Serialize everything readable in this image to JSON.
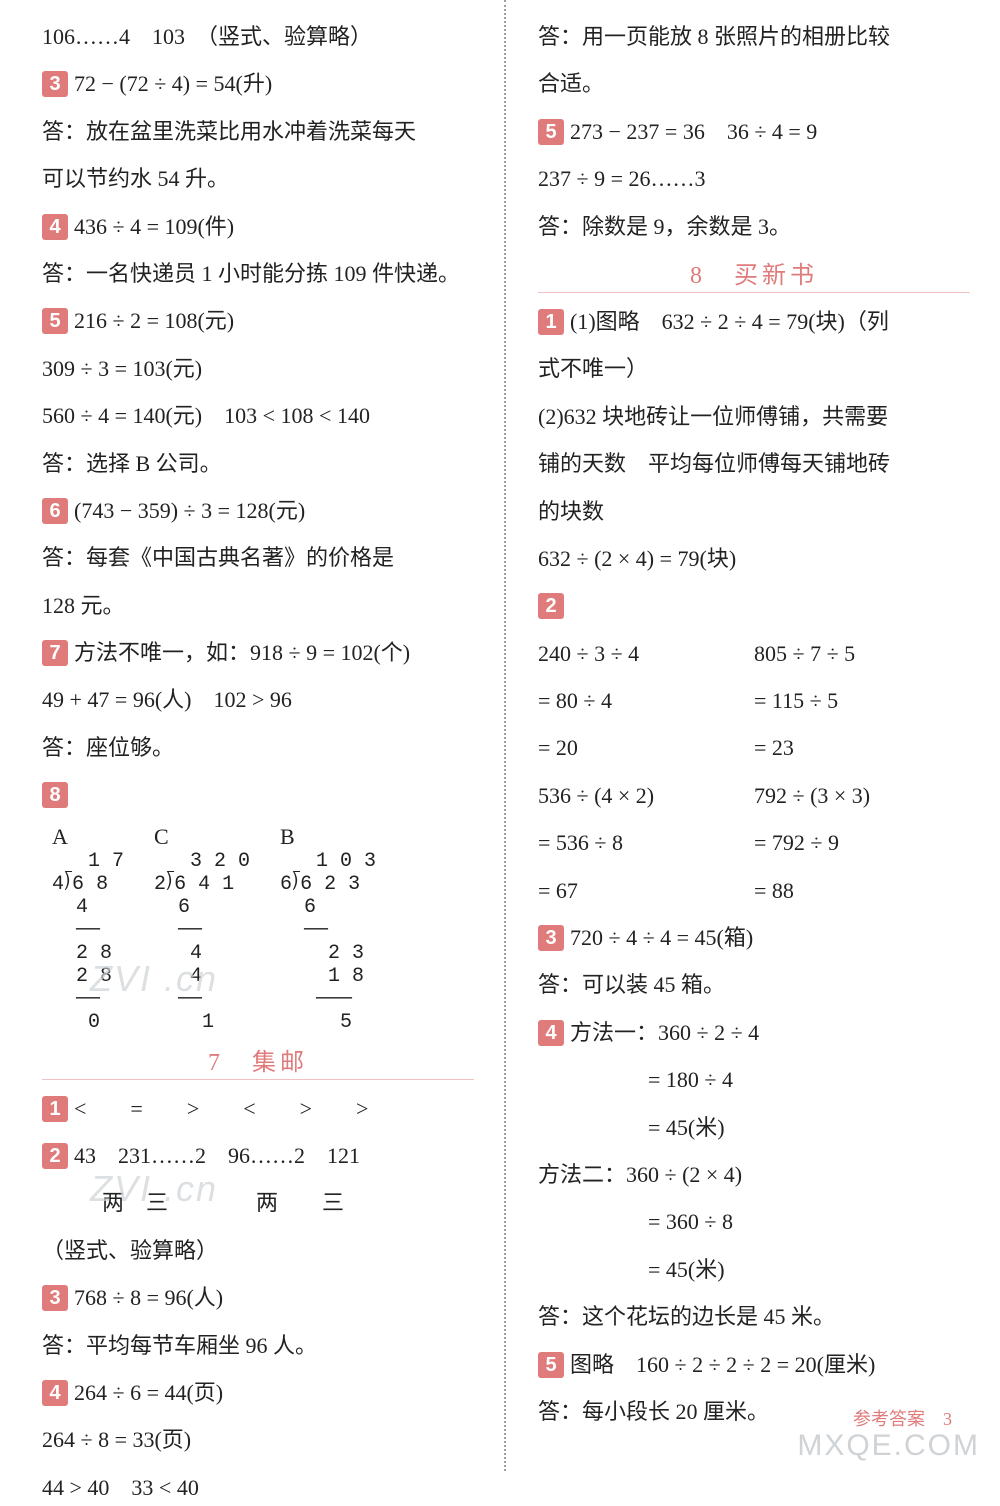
{
  "left": {
    "l1": "106……4　103　（竖式、验算略）",
    "b3": "3",
    "l3": "72 − (72 ÷ 4) = 54(升)",
    "l4": "答：放在盆里洗菜比用水冲着洗菜每天",
    "l5": "可以节约水 54 升。",
    "b4": "4",
    "l6": "436 ÷ 4 = 109(件)",
    "l7": "答：一名快递员 1 小时能分拣 109 件快递。",
    "b5": "5",
    "l8": "216 ÷ 2 = 108(元)",
    "l9": "309 ÷ 3 = 103(元)",
    "l10": "560 ÷ 4 = 140(元)　103 < 108 < 140",
    "l11": "答：选择 B 公司。",
    "b6": "6",
    "l12": "(743 − 359) ÷ 3 = 128(元)",
    "l13": "答：每套《中国古典名著》的价格是",
    "l14": "128 元。",
    "b7": "7",
    "l15": "方法不唯一，如：918 ÷ 9 = 102(个)",
    "l16": "49 + 47 = 96(人)　102 > 96",
    "l17": "答：座位够。",
    "b8": "8",
    "ldA_label": "A",
    "ldA": "   1 7\n4⟌6 8\n  4\n  ──\n  2 8\n  2 8\n  ──\n   0",
    "ldC_label": "C",
    "ldC": "   3 2 0\n2⟌6 4 1\n  6\n  ──\n   4\n   4\n  ──\n    1",
    "ldB_label": "B",
    "ldB": "   1 0 3\n6⟌6 2 3\n  6\n  ──\n    2 3\n    1 8\n   ───\n     5",
    "sec7": "7　集邮",
    "b1": "1",
    "l18": "<　　=　　>　　<　　>　　>",
    "b2": "2",
    "l19a": "43　231……2　96……2　121",
    "l19b": "两　三　　　　两　　三",
    "l19c": "（竖式、验算略）",
    "bb3": "3",
    "l20": "768 ÷ 8 = 96(人)",
    "l21": "答：平均每节车厢坐 96 人。",
    "bb4": "4",
    "l22": "264 ÷ 6 = 44(页)",
    "l23": "264 ÷ 8 = 33(页)",
    "l24": "44 > 40　33 < 40"
  },
  "right": {
    "l1": "答：用一页能放 8 张照片的相册比较",
    "l2": "合适。",
    "b5": "5",
    "l3": "273 − 237 = 36　36 ÷ 4 = 9",
    "l4": "237 ÷ 9 = 26……3",
    "l5": "答：除数是 9，余数是 3。",
    "sec8": "8　买新书",
    "b1": "1",
    "l6": "(1)图略　632 ÷ 2 ÷ 4 = 79(块)（列",
    "l7": "式不唯一）",
    "l8": "(2)632 块地砖让一位师傅铺，共需要",
    "l9": "铺的天数　平均每位师傅每天铺地砖",
    "l10": "的块数",
    "l11": "632 ÷ (2 × 4) = 79(块)",
    "b2": "2",
    "c2a1": "240 ÷ 3 ÷ 4",
    "c2b1": "805 ÷ 7 ÷ 5",
    "c2a2": "= 80 ÷ 4",
    "c2b2": "= 115 ÷ 5",
    "c2a3": "= 20",
    "c2b3": "= 23",
    "c2a4": "536 ÷ (4 × 2)",
    "c2b4": "792 ÷ (3 × 3)",
    "c2a5": "= 536 ÷ 8",
    "c2b5": "= 792 ÷ 9",
    "c2a6": "= 67",
    "c2b6": "= 88",
    "b3": "3",
    "l12": "720 ÷ 4 ÷ 4 = 45(箱)",
    "l13": "答：可以装 45 箱。",
    "b4": "4",
    "l14": "方法一：360 ÷ 2 ÷ 4",
    "l15": "= 180 ÷ 4",
    "l16": "= 45(米)",
    "l17": "方法二：360 ÷ (2 × 4)",
    "l18": "= 360 ÷ 8",
    "l19": "= 45(米)",
    "l20": "答：这个花坛的边长是 45 米。",
    "bb5": "5",
    "l21": "图略　160 ÷ 2 ÷ 2 ÷ 2 = 20(厘米)",
    "l22": "答：每小段长 20 厘米。"
  },
  "watermarks": {
    "w1": "ZVI .cn",
    "w2": "ZVI .cn",
    "footer": "MXQE.COM",
    "pagenum_label": "参考答案",
    "pagenum": "3"
  },
  "colors": {
    "accent": "#e07b7b",
    "text": "#222222",
    "divider": "#9ea1a4",
    "wm": "#cfd3d6"
  }
}
